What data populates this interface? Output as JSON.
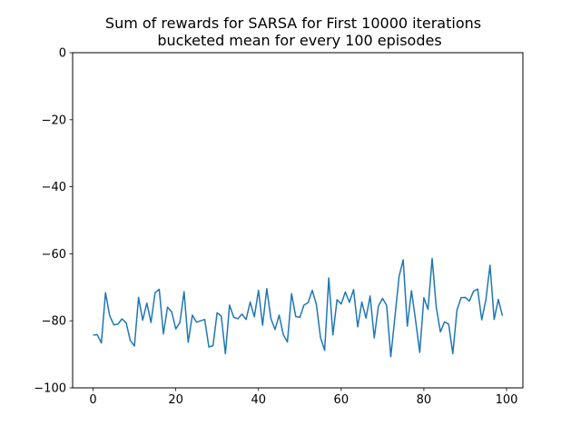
{
  "chart_data": {
    "type": "line",
    "title_lines": [
      "Sum of rewards for SARSA for First 10000 iterations",
      "bucketed mean for every 100 episodes"
    ],
    "xlabel": "",
    "ylabel": "",
    "xlim": [
      -4.95,
      103.95
    ],
    "ylim": [
      -100,
      0
    ],
    "x_ticks": [
      0,
      20,
      40,
      60,
      80,
      100
    ],
    "y_ticks": [
      0,
      -20,
      -40,
      -60,
      -80,
      -100
    ],
    "grid": false,
    "line_color": "#1f77b4",
    "series": [
      {
        "x_start": 0,
        "values": [
          -84.3,
          -84.1,
          -86.6,
          -71.6,
          -78.4,
          -81.2,
          -81.0,
          -79.4,
          -80.6,
          -85.9,
          -87.5,
          -73.0,
          -79.8,
          -74.7,
          -80.5,
          -71.6,
          -70.6,
          -83.9,
          -75.9,
          -77.3,
          -82.4,
          -80.5,
          -71.3,
          -86.4,
          -78.3,
          -80.4,
          -80.0,
          -79.6,
          -87.8,
          -87.4,
          -77.6,
          -78.6,
          -89.8,
          -75.3,
          -78.9,
          -79.4,
          -78.0,
          -79.6,
          -74.4,
          -78.8,
          -70.9,
          -81.3,
          -70.4,
          -79.3,
          -82.6,
          -78.3,
          -84.1,
          -86.3,
          -71.9,
          -78.7,
          -79.0,
          -75.3,
          -74.6,
          -70.9,
          -75.1,
          -85.0,
          -88.8,
          -67.2,
          -84.2,
          -73.7,
          -75.0,
          -71.4,
          -74.5,
          -70.7,
          -81.8,
          -74.4,
          -79.2,
          -72.6,
          -85.1,
          -75.6,
          -73.3,
          -75.4,
          -90.7,
          -78.8,
          -66.8,
          -61.8,
          -81.6,
          -71.0,
          -79.9,
          -89.4,
          -73.1,
          -76.6,
          -61.4,
          -76.0,
          -83.3,
          -80.3,
          -81.0,
          -89.8,
          -76.8,
          -73.1,
          -73.0,
          -74.1,
          -71.2,
          -70.5,
          -79.7,
          -73.7,
          -63.4,
          -79.6,
          -73.6,
          -78.5
        ]
      }
    ]
  }
}
